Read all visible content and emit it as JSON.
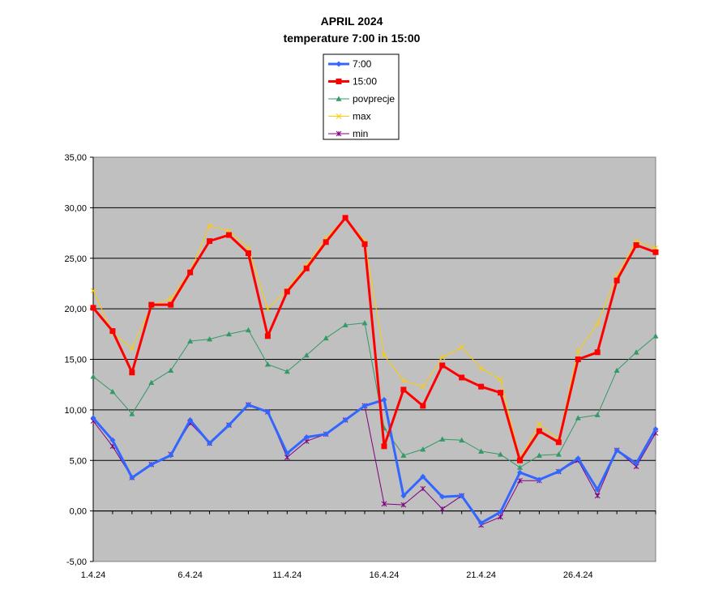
{
  "chart_data": {
    "type": "line",
    "title": "APRIL  2024",
    "subtitle": "temperature 7:00 in 15:00",
    "xlabel": "",
    "ylabel": "",
    "ylim": [
      -5,
      35
    ],
    "ytick_labels": [
      "-5,00",
      "0,00",
      "5,00",
      "10,00",
      "15,00",
      "20,00",
      "25,00",
      "30,00",
      "35,00"
    ],
    "xtick_labels": [
      "1.4.24",
      "6.4.24",
      "11.4.24",
      "16.4.24",
      "21.4.24",
      "26.4.24"
    ],
    "grid": "horizontal",
    "background": "#c0c0c0",
    "legend_position": "top-center",
    "x": [
      1,
      2,
      3,
      4,
      5,
      6,
      7,
      8,
      9,
      10,
      11,
      12,
      13,
      14,
      15,
      16,
      17,
      18,
      19,
      20,
      21,
      22,
      23,
      24,
      25,
      26,
      27,
      28,
      29,
      30
    ],
    "series": [
      {
        "name": "7:00",
        "color": "#3366ff",
        "marker": "diamond",
        "values": [
          9.2,
          7.0,
          3.3,
          4.6,
          5.5,
          9.0,
          6.7,
          8.5,
          10.5,
          9.8,
          5.7,
          7.3,
          7.6,
          9.0,
          10.4,
          11.0,
          1.5,
          3.4,
          1.4,
          1.5,
          -1.2,
          -0.1,
          3.8,
          3.1,
          3.9,
          5.2,
          2.1,
          6.0,
          4.7,
          8.1
        ]
      },
      {
        "name": "15:00",
        "color": "#ff0000",
        "marker": "square",
        "values": [
          20.1,
          17.8,
          13.7,
          20.4,
          20.4,
          23.6,
          26.7,
          27.3,
          25.5,
          17.3,
          21.7,
          24.0,
          26.6,
          29.0,
          26.4,
          6.4,
          12.0,
          10.4,
          14.4,
          13.2,
          12.3,
          11.7,
          5.0,
          7.9,
          6.8,
          15.0,
          15.7,
          22.8,
          26.3,
          25.6
        ]
      },
      {
        "name": "povprecje",
        "color": "#339966",
        "marker": "triangle",
        "values": [
          13.3,
          11.8,
          9.6,
          12.7,
          13.9,
          16.8,
          17.0,
          17.5,
          17.9,
          14.5,
          13.8,
          15.4,
          17.1,
          18.4,
          18.6,
          8.2,
          5.5,
          6.1,
          7.1,
          7.0,
          5.9,
          5.6,
          4.3,
          5.5,
          5.6,
          9.2,
          9.5,
          13.9,
          15.7,
          17.3
        ]
      },
      {
        "name": "max",
        "color": "#ffcc00",
        "marker": "x",
        "values": [
          21.8,
          17.6,
          16.1,
          20.3,
          21.0,
          23.7,
          28.2,
          27.7,
          26.0,
          20.0,
          21.9,
          24.3,
          27.0,
          29.0,
          26.7,
          15.4,
          12.9,
          12.3,
          15.2,
          16.2,
          14.1,
          13.0,
          5.2,
          8.6,
          7.1,
          15.8,
          18.5,
          23.3,
          26.7,
          26.0
        ]
      },
      {
        "name": "min",
        "color": "#800080",
        "marker": "star",
        "values": [
          8.9,
          6.4,
          3.3,
          4.6,
          5.6,
          8.7,
          6.7,
          8.5,
          10.5,
          9.8,
          5.3,
          6.9,
          7.6,
          9.0,
          10.4,
          0.7,
          0.6,
          2.2,
          0.2,
          1.5,
          -1.4,
          -0.6,
          3.0,
          3.0,
          3.9,
          5.0,
          1.5,
          6.0,
          4.4,
          7.7
        ]
      }
    ]
  }
}
